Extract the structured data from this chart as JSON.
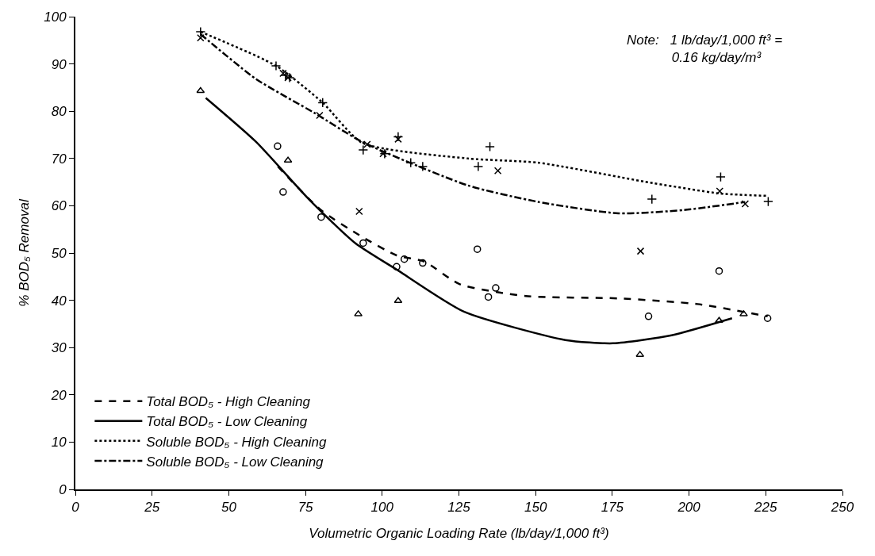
{
  "chart_data": {
    "type": "scatter",
    "xlabel": "Volumetric Organic Loading Rate (lb/day/1,000 ft³)",
    "ylabel": "% BOD₅ Removal",
    "annotations": [
      "Note:   1 lb/day/1,000 ft³ =\n            0.16 kg/day/m³"
    ],
    "xlim": [
      0,
      250
    ],
    "xticks": [
      0,
      25,
      50,
      75,
      100,
      125,
      150,
      175,
      200,
      225,
      250
    ],
    "ylim": [
      0,
      100
    ],
    "yticks": [
      0,
      10,
      20,
      30,
      40,
      50,
      60,
      70,
      80,
      90,
      100
    ],
    "legend": "bottom left",
    "series": [
      {
        "marker": "circle",
        "color": "#000000",
        "x": [
          65.9,
          67.7,
          80.1,
          93.8,
          104.7,
          107.2,
          113.2,
          131,
          134.6,
          137,
          186.8,
          209.8,
          225.6
        ],
        "values": [
          72.6,
          62.9,
          57.6,
          52.1,
          47.1,
          48.7,
          47.9,
          50.8,
          40.7,
          42.6,
          36.6,
          46.2,
          36.2
        ]
      },
      {
        "marker": "triangle",
        "color": "#000000",
        "x": [
          40.8,
          69.3,
          92.2,
          105.2,
          184,
          209.8,
          217.8
        ],
        "values": [
          84.3,
          69.6,
          37.1,
          39.9,
          28.5,
          35.7,
          37.1
        ]
      },
      {
        "marker": "cross",
        "color": "#000000",
        "x": [
          40.8,
          65.4,
          68.5,
          69.8,
          80.6,
          93.8,
          100.8,
          105.2,
          109.3,
          113.2,
          131.3,
          135.1,
          187.9,
          210.3,
          225.8
        ],
        "values": [
          96.8,
          89.6,
          87.6,
          87.1,
          81.8,
          71.8,
          71,
          74.6,
          69.1,
          68.3,
          68.3,
          72.5,
          61.4,
          66.1,
          60.9
        ]
      },
      {
        "marker": "x",
        "color": "#000000",
        "x": [
          40.8,
          67.7,
          69.3,
          79.6,
          92.5,
          95.1,
          100.3,
          105.2,
          137.7,
          184.2,
          210,
          218.3
        ],
        "values": [
          95.5,
          88,
          87.1,
          79.1,
          58.8,
          73,
          71,
          74.1,
          67.4,
          50.4,
          63.1,
          60.4
        ]
      },
      {
        "name": "Total BOD₅ - High Cleaning",
        "type": "line",
        "line_style": "dashed",
        "color": "#000000",
        "x": [
          66,
          80,
          93.5,
          104.7,
          113.7,
          125.3,
          146.8,
          177,
          202.8,
          225.6
        ],
        "values": [
          68.3,
          59.1,
          53.4,
          49.5,
          48.2,
          43.4,
          40.9,
          40.4,
          39.2,
          36.6
        ]
      },
      {
        "name": "Total BOD₅ - Low Cleaning",
        "type": "line",
        "line_style": "solid",
        "color": "#000000",
        "x": [
          42.5,
          58.9,
          76.2,
          91.2,
          104.7,
          126.6,
          159.7,
          175.2,
          194.3,
          214
        ],
        "values": [
          82.8,
          73.5,
          61.3,
          52.1,
          46.5,
          37.6,
          31.6,
          30.9,
          32.6,
          36.2
        ]
      },
      {
        "name": "Soluble BOD₅ - High Cleaning",
        "type": "line",
        "line_style": "dotted",
        "color": "#000000",
        "x": [
          40.8,
          65.4,
          80.6,
          93.5,
          127.9,
          151,
          185.5,
          210,
          225.3
        ],
        "values": [
          96.8,
          89.6,
          81.8,
          73.3,
          70,
          69.1,
          65.1,
          62.6,
          62.1
        ]
      },
      {
        "name": "Soluble BOD₅ - Low Cleaning",
        "type": "line",
        "line_style": "dashdot",
        "color": "#000000",
        "x": [
          40.8,
          58.9,
          78,
          93.5,
          127.9,
          151,
          177,
          198.4,
          218.3
        ],
        "values": [
          96.3,
          86.8,
          79.6,
          73.5,
          64.3,
          60.8,
          58.4,
          59.1,
          60.8
        ]
      }
    ]
  }
}
